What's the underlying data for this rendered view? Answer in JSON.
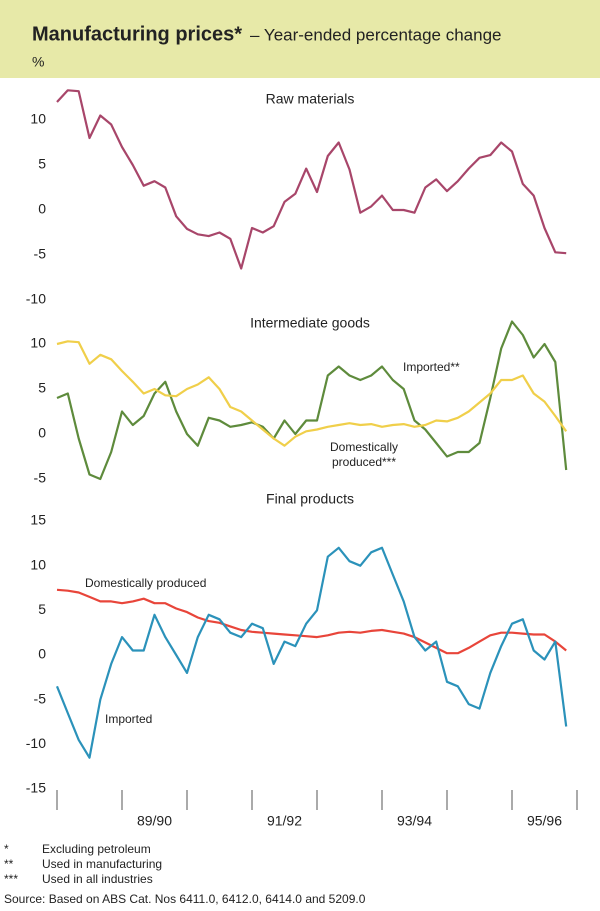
{
  "title": "Manufacturing prices*",
  "subtitle": "– Year-ended percentage change",
  "unit": "%",
  "footnotes": [
    {
      "marker": "*",
      "text": "Excluding petroleum"
    },
    {
      "marker": "**",
      "text": "Used in manufacturing"
    },
    {
      "marker": "***",
      "text": "Used in all industries"
    }
  ],
  "source": "Source: Based on ABS Cat. Nos 6411.0, 6412.0, 6414.0 and 5209.0",
  "chart_data": [
    {
      "type": "line",
      "title": "Raw materials",
      "ylim": [
        -10,
        14
      ],
      "yticks": [
        -10,
        -5,
        0,
        5,
        10
      ],
      "x": [
        0,
        2,
        4,
        6,
        8,
        10,
        12,
        14,
        16,
        18,
        20,
        22,
        24,
        26,
        28,
        30,
        32,
        34,
        36,
        38,
        40,
        42,
        44,
        46,
        48,
        50,
        52,
        54,
        56,
        58,
        60,
        62,
        64,
        66,
        68,
        70,
        72,
        74,
        76,
        78,
        80,
        82,
        84,
        86,
        88,
        90,
        92,
        94
      ],
      "series": [
        {
          "name": "Raw materials",
          "color": "#a8466a",
          "values": [
            12,
            13.3,
            13.2,
            8,
            10.5,
            9.5,
            7,
            5,
            2.7,
            3.2,
            2.5,
            -0.7,
            -2.1,
            -2.7,
            -2.9,
            -2.5,
            -3.2,
            -6.5,
            -2,
            -2.5,
            -1.8,
            0.9,
            1.8,
            4.6,
            2,
            6,
            7.5,
            4.5,
            -0.3,
            0.4,
            1.6,
            0,
            0,
            -0.3,
            2.5,
            3.4,
            2.1,
            3.2,
            4.6,
            5.8,
            6.1,
            7.5,
            6.5,
            2.9,
            1.6,
            -2,
            -4.7,
            -4.8
          ]
        }
      ]
    },
    {
      "type": "line",
      "title": "Intermediate goods",
      "ylim": [
        -5,
        13
      ],
      "yticks": [
        -5,
        0,
        5,
        10
      ],
      "x": [
        0,
        2,
        4,
        6,
        8,
        10,
        12,
        14,
        16,
        18,
        20,
        22,
        24,
        26,
        28,
        30,
        32,
        34,
        36,
        38,
        40,
        42,
        44,
        46,
        48,
        50,
        52,
        54,
        56,
        58,
        60,
        62,
        64,
        66,
        68,
        70,
        72,
        74,
        76,
        78,
        80,
        82,
        84,
        86,
        88,
        90,
        92,
        94
      ],
      "series": [
        {
          "name": "Imported**",
          "color": "#5e8b3c",
          "values": [
            4,
            4.5,
            -0.5,
            -4.5,
            -5,
            -2,
            2.5,
            1,
            2,
            4.5,
            5.8,
            2.5,
            0,
            -1.3,
            1.8,
            1.5,
            0.8,
            1,
            1.3,
            0.8,
            -0.5,
            1.5,
            0,
            1.5,
            1.5,
            6.5,
            7.5,
            6.5,
            6,
            6.5,
            7.5,
            6,
            5,
            1.5,
            0.5,
            -1,
            -2.5,
            -2,
            -2,
            -1,
            4,
            9.5,
            12.5,
            11,
            8.5,
            10,
            8,
            -4
          ]
        },
        {
          "name": "Domestically produced***",
          "color": "#f0cf4a",
          "values": [
            10,
            10.3,
            10.2,
            7.8,
            8.8,
            8.3,
            7,
            5.8,
            4.5,
            5,
            4.3,
            4.2,
            5,
            5.5,
            6.3,
            5,
            3,
            2.5,
            1.5,
            0.5,
            -0.5,
            -1.3,
            -0.3,
            0.3,
            0.5,
            0.8,
            1,
            1.2,
            1,
            1.1,
            0.8,
            1,
            1.1,
            0.8,
            1,
            1.5,
            1.4,
            1.8,
            2.5,
            3.5,
            4.5,
            6,
            6,
            6.5,
            4.5,
            3.6,
            2,
            0.3
          ]
        }
      ]
    },
    {
      "type": "line",
      "title": "Final products",
      "ylim": [
        -15,
        15
      ],
      "yticks": [
        -15,
        -10,
        -5,
        0,
        5,
        10,
        15
      ],
      "xlim": [
        0,
        96
      ],
      "xticks": [
        0,
        12,
        24,
        36,
        48,
        60,
        72,
        84,
        96
      ],
      "xtick_labels": [
        {
          "value": 18,
          "label": "89/90"
        },
        {
          "value": 42,
          "label": "91/92"
        },
        {
          "value": 66,
          "label": "93/94"
        },
        {
          "value": 90,
          "label": "95/96"
        }
      ],
      "x": [
        0,
        2,
        4,
        6,
        8,
        10,
        12,
        14,
        16,
        18,
        20,
        22,
        24,
        26,
        28,
        30,
        32,
        34,
        36,
        38,
        40,
        42,
        44,
        46,
        48,
        50,
        52,
        54,
        56,
        58,
        60,
        62,
        64,
        66,
        68,
        70,
        72,
        74,
        76,
        78,
        80,
        82,
        84,
        86,
        88,
        90,
        92,
        94
      ],
      "series": [
        {
          "name": "Domestically produced",
          "color": "#e8453a",
          "values": [
            7.3,
            7.2,
            7,
            6.5,
            6,
            6,
            5.8,
            6,
            6.3,
            5.8,
            5.8,
            5.2,
            4.8,
            4.2,
            3.8,
            3.6,
            3.2,
            2.8,
            2.6,
            2.5,
            2.4,
            2.3,
            2.2,
            2.1,
            2,
            2.2,
            2.5,
            2.6,
            2.5,
            2.7,
            2.8,
            2.6,
            2.4,
            2,
            1.4,
            0.8,
            0.2,
            0.2,
            0.8,
            1.5,
            2.2,
            2.5,
            2.5,
            2.4,
            2.3,
            2.3,
            1.5,
            0.5
          ]
        },
        {
          "name": "Imported",
          "color": "#2b92ba",
          "values": [
            -3.5,
            -6.5,
            -9.5,
            -11.5,
            -5,
            -1,
            2,
            0.5,
            0.5,
            4.5,
            2,
            0,
            -2,
            2,
            4.5,
            4,
            2.5,
            2,
            3.5,
            3,
            -1,
            1.5,
            1,
            3.5,
            5,
            11,
            12,
            10.5,
            10,
            11.5,
            12,
            9,
            6,
            2,
            0.5,
            1.5,
            -3,
            -3.5,
            -5.5,
            -6,
            -2,
            1,
            3.5,
            4,
            0.5,
            -0.5,
            1.5,
            -8
          ]
        }
      ]
    }
  ]
}
